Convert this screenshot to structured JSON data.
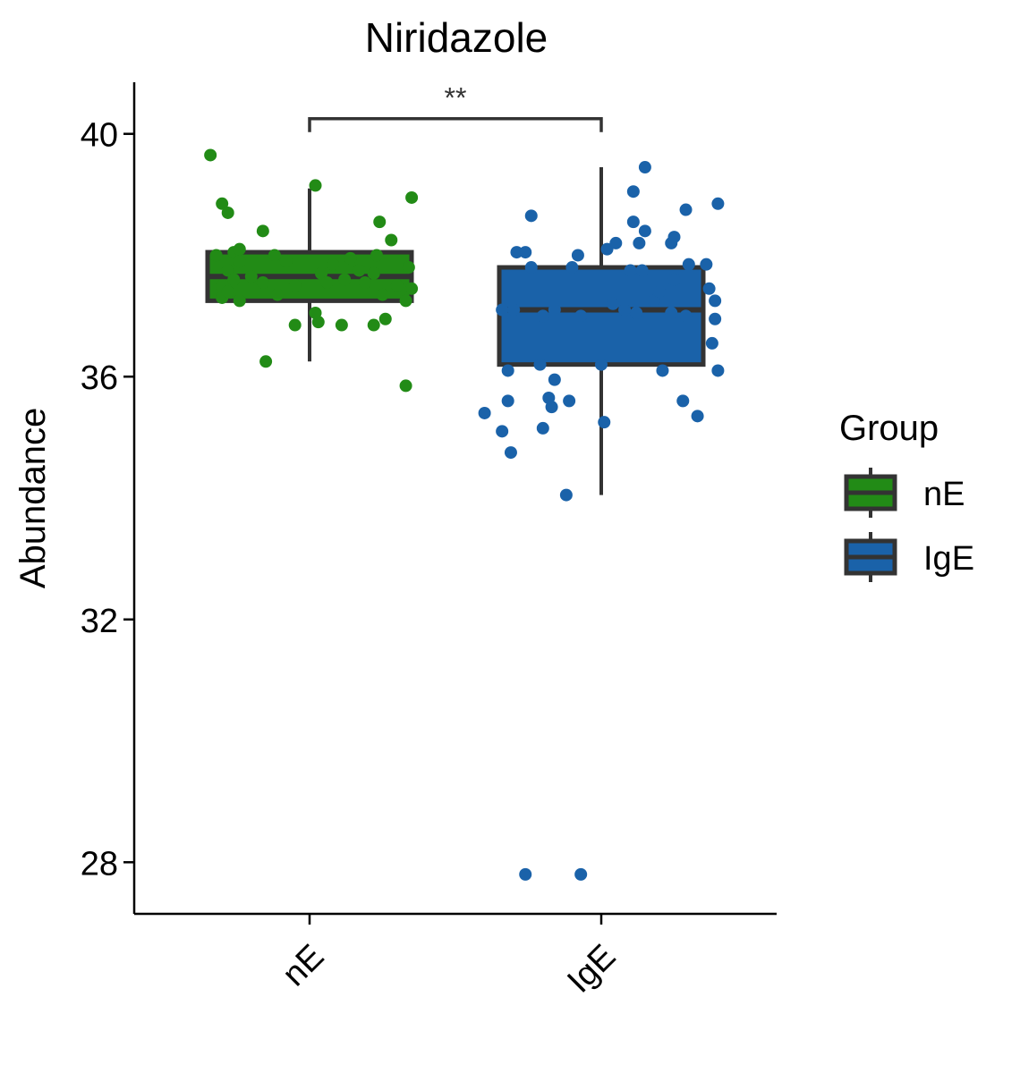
{
  "chart_data": {
    "type": "box",
    "title": "Niridazole",
    "xlabel": "",
    "ylabel": "Abundance",
    "categories": [
      "nE",
      "IgE"
    ],
    "ylim": [
      27.15,
      40.85
    ],
    "yticks": [
      28,
      32,
      36,
      40
    ],
    "grid": false,
    "legend": {
      "title": "Group",
      "position": "right",
      "entries": [
        {
          "label": "nE",
          "color": "#228B16"
        },
        {
          "label": "IgE",
          "color": "#1A62A9"
        }
      ]
    },
    "significance": {
      "between": [
        "nE",
        "IgE"
      ],
      "label": "**",
      "y": 40.25
    },
    "series": [
      {
        "name": "nE",
        "color": "#228B16",
        "box": {
          "min": 36.25,
          "q1": 37.25,
          "median": 37.65,
          "q3": 38.05,
          "max": 39.1
        },
        "points": [
          {
            "dx": -0.34,
            "y": 39.65
          },
          {
            "dx": -0.32,
            "y": 38.0
          },
          {
            "dx": -0.3,
            "y": 37.5
          },
          {
            "dx": -0.3,
            "y": 38.85
          },
          {
            "dx": -0.3,
            "y": 37.3
          },
          {
            "dx": -0.28,
            "y": 38.7
          },
          {
            "dx": -0.28,
            "y": 37.75
          },
          {
            "dx": -0.28,
            "y": 37.4
          },
          {
            "dx": -0.26,
            "y": 38.05
          },
          {
            "dx": -0.26,
            "y": 37.6
          },
          {
            "dx": -0.24,
            "y": 38.1
          },
          {
            "dx": -0.24,
            "y": 37.9
          },
          {
            "dx": -0.24,
            "y": 37.25
          },
          {
            "dx": -0.2,
            "y": 37.65
          },
          {
            "dx": -0.16,
            "y": 37.55
          },
          {
            "dx": -0.16,
            "y": 38.4
          },
          {
            "dx": -0.15,
            "y": 36.25
          },
          {
            "dx": -0.12,
            "y": 38.0
          },
          {
            "dx": -0.11,
            "y": 37.35
          },
          {
            "dx": -0.08,
            "y": 37.9
          },
          {
            "dx": -0.05,
            "y": 37.5
          },
          {
            "dx": -0.05,
            "y": 36.85
          },
          {
            "dx": 0.02,
            "y": 37.05
          },
          {
            "dx": 0.03,
            "y": 36.9
          },
          {
            "dx": 0.02,
            "y": 39.15
          },
          {
            "dx": 0.04,
            "y": 37.7
          },
          {
            "dx": 0.06,
            "y": 37.55
          },
          {
            "dx": 0.08,
            "y": 37.85
          },
          {
            "dx": 0.12,
            "y": 37.6
          },
          {
            "dx": 0.11,
            "y": 36.85
          },
          {
            "dx": 0.14,
            "y": 37.95
          },
          {
            "dx": 0.17,
            "y": 37.75
          },
          {
            "dx": 0.19,
            "y": 37.55
          },
          {
            "dx": 0.22,
            "y": 36.85
          },
          {
            "dx": 0.22,
            "y": 37.7
          },
          {
            "dx": 0.23,
            "y": 38.0
          },
          {
            "dx": 0.24,
            "y": 38.55
          },
          {
            "dx": 0.25,
            "y": 37.35
          },
          {
            "dx": 0.26,
            "y": 36.95
          },
          {
            "dx": 0.28,
            "y": 38.25
          },
          {
            "dx": 0.3,
            "y": 37.5
          },
          {
            "dx": 0.33,
            "y": 37.25
          },
          {
            "dx": 0.33,
            "y": 35.85
          },
          {
            "dx": 0.34,
            "y": 37.8
          },
          {
            "dx": 0.35,
            "y": 38.95
          },
          {
            "dx": 0.35,
            "y": 37.45
          }
        ]
      },
      {
        "name": "IgE",
        "color": "#1A62A9",
        "box": {
          "min": 34.05,
          "q1": 36.2,
          "median": 37.1,
          "q3": 37.8,
          "max": 39.45
        },
        "points": [
          {
            "dx": -0.4,
            "y": 35.4
          },
          {
            "dx": -0.34,
            "y": 35.1
          },
          {
            "dx": -0.34,
            "y": 37.1
          },
          {
            "dx": -0.32,
            "y": 36.1
          },
          {
            "dx": -0.32,
            "y": 35.6
          },
          {
            "dx": -0.31,
            "y": 34.75
          },
          {
            "dx": -0.3,
            "y": 37.1
          },
          {
            "dx": -0.29,
            "y": 38.05
          },
          {
            "dx": -0.26,
            "y": 38.05
          },
          {
            "dx": -0.26,
            "y": 27.8
          },
          {
            "dx": -0.24,
            "y": 38.65
          },
          {
            "dx": -0.24,
            "y": 37.8
          },
          {
            "dx": -0.21,
            "y": 36.2
          },
          {
            "dx": -0.2,
            "y": 37.0
          },
          {
            "dx": -0.2,
            "y": 35.15
          },
          {
            "dx": -0.18,
            "y": 35.65
          },
          {
            "dx": -0.17,
            "y": 35.5
          },
          {
            "dx": -0.16,
            "y": 35.95
          },
          {
            "dx": -0.16,
            "y": 37.1
          },
          {
            "dx": -0.12,
            "y": 34.05
          },
          {
            "dx": -0.11,
            "y": 35.6
          },
          {
            "dx": -0.1,
            "y": 37.8
          },
          {
            "dx": -0.08,
            "y": 38.0
          },
          {
            "dx": -0.07,
            "y": 27.8
          },
          {
            "dx": -0.07,
            "y": 37.0
          },
          {
            "dx": 0.0,
            "y": 36.2
          },
          {
            "dx": 0.01,
            "y": 35.25
          },
          {
            "dx": 0.02,
            "y": 38.1
          },
          {
            "dx": 0.04,
            "y": 37.2
          },
          {
            "dx": 0.05,
            "y": 38.2
          },
          {
            "dx": 0.08,
            "y": 37.1
          },
          {
            "dx": 0.1,
            "y": 37.75
          },
          {
            "dx": 0.11,
            "y": 39.05
          },
          {
            "dx": 0.11,
            "y": 38.55
          },
          {
            "dx": 0.12,
            "y": 37.05
          },
          {
            "dx": 0.13,
            "y": 38.2
          },
          {
            "dx": 0.14,
            "y": 37.75
          },
          {
            "dx": 0.15,
            "y": 38.4
          },
          {
            "dx": 0.15,
            "y": 39.45
          },
          {
            "dx": 0.18,
            "y": 37.25
          },
          {
            "dx": 0.2,
            "y": 37.4
          },
          {
            "dx": 0.21,
            "y": 36.1
          },
          {
            "dx": 0.24,
            "y": 37.05
          },
          {
            "dx": 0.24,
            "y": 38.2
          },
          {
            "dx": 0.25,
            "y": 38.3
          },
          {
            "dx": 0.25,
            "y": 37.6
          },
          {
            "dx": 0.28,
            "y": 35.6
          },
          {
            "dx": 0.29,
            "y": 37.0
          },
          {
            "dx": 0.29,
            "y": 38.75
          },
          {
            "dx": 0.3,
            "y": 37.85
          },
          {
            "dx": 0.33,
            "y": 35.35
          },
          {
            "dx": 0.36,
            "y": 37.85
          },
          {
            "dx": 0.37,
            "y": 37.45
          },
          {
            "dx": 0.38,
            "y": 36.55
          },
          {
            "dx": 0.39,
            "y": 37.25
          },
          {
            "dx": 0.39,
            "y": 36.95
          },
          {
            "dx": 0.4,
            "y": 36.1
          },
          {
            "dx": 0.4,
            "y": 38.85
          }
        ]
      }
    ]
  }
}
